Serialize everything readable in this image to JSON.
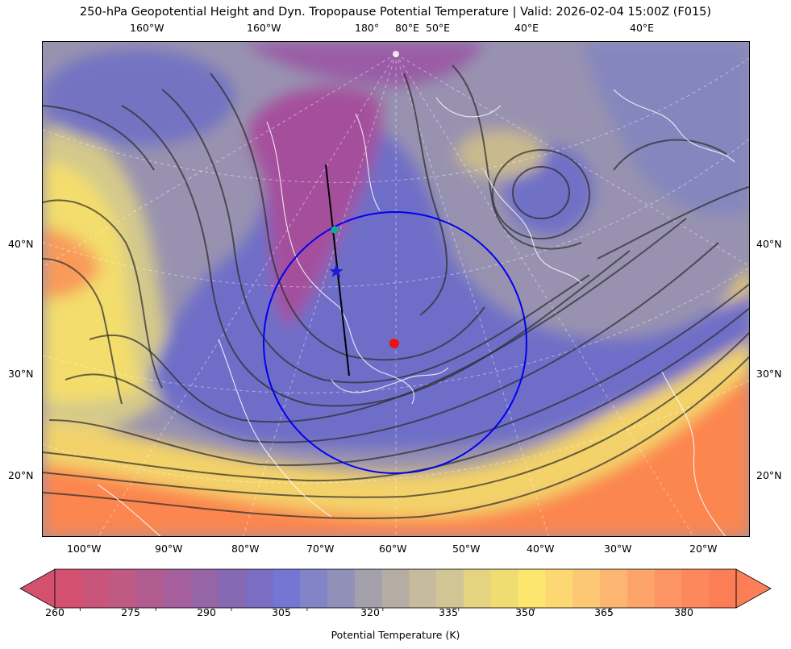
{
  "title": "250-hPa Geopotential Height and Dyn. Tropopause Potential Temperature   |  Valid: 2026-02-04 15:00Z (F015)",
  "top_lon_labels": [
    "160°W",
    "160°W",
    "180°",
    "80°E",
    "50°E",
    "40°E",
    "40°E"
  ],
  "bottom_lon_labels": [
    "100°W",
    "90°W",
    "80°W",
    "70°W",
    "60°W",
    "50°W",
    "40°W",
    "30°W",
    "20°W"
  ],
  "left_lat_labels": [
    "40°N",
    "30°N",
    "20°N"
  ],
  "right_lat_labels": [
    "40°N",
    "30°N",
    "20°N"
  ],
  "colorbar": {
    "title": "Potential Temperature (K)",
    "min": 255,
    "max": 390,
    "step": 5,
    "ticks": [
      "260",
      "275",
      "290",
      "305",
      "320",
      "335",
      "350",
      "365",
      "380"
    ],
    "colors": [
      "#d4506f",
      "#c9557a",
      "#bf5a85",
      "#b25d91",
      "#a45f9c",
      "#9565a8",
      "#8669b3",
      "#7a6dc2",
      "#7575d4",
      "#8383c8",
      "#9090b8",
      "#a3a0ab",
      "#b5ada3",
      "#c6bb9d",
      "#d1c596",
      "#e4d37f",
      "#f0dd72",
      "#fce66e",
      "#fdd772",
      "#fdc874",
      "#fdb672",
      "#fda46a",
      "#fc9463",
      "#fc885c",
      "#fc7e57"
    ],
    "extend": "both"
  },
  "colors": {
    "cold_core": "#a94e9a",
    "trough_blue": "#6c6cc8",
    "neutral": "#9692b2",
    "warm": "#fbd96a",
    "hot": "#fc7f4e",
    "coast": "#ffffff",
    "contour": "#2b2b2b",
    "circle": "#0000ee",
    "center_marker": "#ee1111",
    "star_marker": "#1a1ad9",
    "point_marker": "#11aa99"
  },
  "markers": [
    {
      "name": "center-marker",
      "shape": "dot",
      "color": "red"
    },
    {
      "name": "star-marker",
      "shape": "star",
      "color": "blue"
    },
    {
      "name": "point-marker",
      "shape": "dot",
      "color": "teal"
    }
  ]
}
